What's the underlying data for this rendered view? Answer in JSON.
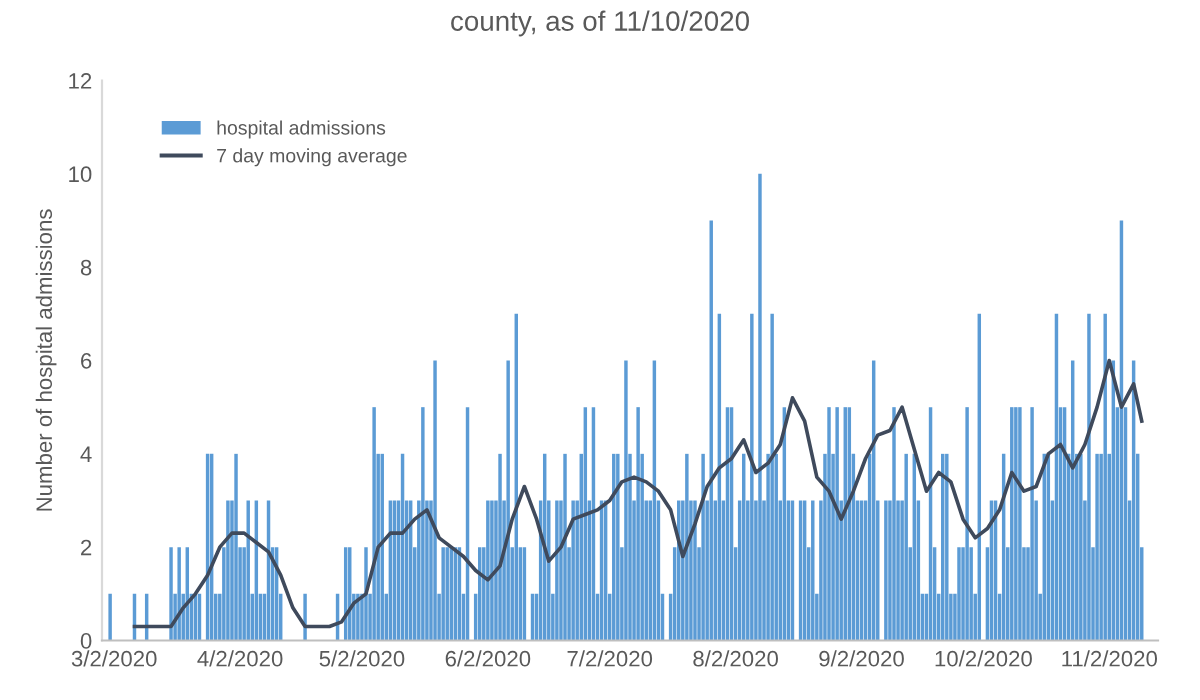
{
  "chart_data": {
    "type": "bar",
    "title": "county, as of 11/10/2020",
    "ylabel": "Number of hospital admissions",
    "ylim": [
      0,
      12
    ],
    "yticks": [
      0,
      2,
      4,
      6,
      8,
      10,
      12
    ],
    "xlim": [
      "2020-02-28",
      "2020-11-14"
    ],
    "xticks": [
      {
        "value": "2020-03-02",
        "label": "3/2/2020"
      },
      {
        "value": "2020-04-02",
        "label": "4/2/2020"
      },
      {
        "value": "2020-05-02",
        "label": "5/2/2020"
      },
      {
        "value": "2020-06-02",
        "label": "6/2/2020"
      },
      {
        "value": "2020-07-02",
        "label": "7/2/2020"
      },
      {
        "value": "2020-08-02",
        "label": "8/2/2020"
      },
      {
        "value": "2020-09-02",
        "label": "9/2/2020"
      },
      {
        "value": "2020-10-02",
        "label": "10/2/2020"
      },
      {
        "value": "2020-11-02",
        "label": "11/2/2020"
      }
    ],
    "grid": false,
    "legend": "top left",
    "series": [
      {
        "name": "hospital admissions",
        "color": "#5b9bd5",
        "x": [
          "2020-03-01",
          "2020-03-02",
          "2020-03-03",
          "2020-03-04",
          "2020-03-05",
          "2020-03-06",
          "2020-03-07",
          "2020-03-08",
          "2020-03-09",
          "2020-03-10",
          "2020-03-11",
          "2020-03-12",
          "2020-03-13",
          "2020-03-14",
          "2020-03-15",
          "2020-03-16",
          "2020-03-17",
          "2020-03-18",
          "2020-03-19",
          "2020-03-20",
          "2020-03-21",
          "2020-03-22",
          "2020-03-23",
          "2020-03-24",
          "2020-03-25",
          "2020-03-26",
          "2020-03-27",
          "2020-03-28",
          "2020-03-29",
          "2020-03-30",
          "2020-03-31",
          "2020-04-01",
          "2020-04-02",
          "2020-04-03",
          "2020-04-04",
          "2020-04-05",
          "2020-04-06",
          "2020-04-07",
          "2020-04-08",
          "2020-04-09",
          "2020-04-10",
          "2020-04-11",
          "2020-04-12",
          "2020-04-13",
          "2020-04-14",
          "2020-04-15",
          "2020-04-16",
          "2020-04-17",
          "2020-04-18",
          "2020-04-19",
          "2020-04-20",
          "2020-04-21",
          "2020-04-22",
          "2020-04-23",
          "2020-04-24",
          "2020-04-25",
          "2020-04-26",
          "2020-04-27",
          "2020-04-28",
          "2020-04-29",
          "2020-04-30",
          "2020-05-01",
          "2020-05-02",
          "2020-05-03",
          "2020-05-04",
          "2020-05-05",
          "2020-05-06",
          "2020-05-07",
          "2020-05-08",
          "2020-05-09",
          "2020-05-10",
          "2020-05-11",
          "2020-05-12",
          "2020-05-13",
          "2020-05-14",
          "2020-05-15",
          "2020-05-16",
          "2020-05-17",
          "2020-05-18",
          "2020-05-19",
          "2020-05-20",
          "2020-05-21",
          "2020-05-22",
          "2020-05-23",
          "2020-05-24",
          "2020-05-25",
          "2020-05-26",
          "2020-05-27",
          "2020-05-28",
          "2020-05-29",
          "2020-05-30",
          "2020-05-31",
          "2020-06-01",
          "2020-06-02",
          "2020-06-03",
          "2020-06-04",
          "2020-06-05",
          "2020-06-06",
          "2020-06-07",
          "2020-06-08",
          "2020-06-09",
          "2020-06-10",
          "2020-06-11",
          "2020-06-12",
          "2020-06-13",
          "2020-06-14",
          "2020-06-15",
          "2020-06-16",
          "2020-06-17",
          "2020-06-18",
          "2020-06-19",
          "2020-06-20",
          "2020-06-21",
          "2020-06-22",
          "2020-06-23",
          "2020-06-24",
          "2020-06-25",
          "2020-06-26",
          "2020-06-27",
          "2020-06-28",
          "2020-06-29",
          "2020-06-30",
          "2020-07-01",
          "2020-07-02",
          "2020-07-03",
          "2020-07-04",
          "2020-07-05",
          "2020-07-06",
          "2020-07-07",
          "2020-07-08",
          "2020-07-09",
          "2020-07-10",
          "2020-07-11",
          "2020-07-12",
          "2020-07-13",
          "2020-07-14",
          "2020-07-15",
          "2020-07-16",
          "2020-07-17",
          "2020-07-18",
          "2020-07-19",
          "2020-07-20",
          "2020-07-21",
          "2020-07-22",
          "2020-07-23",
          "2020-07-24",
          "2020-07-25",
          "2020-07-26",
          "2020-07-27",
          "2020-07-28",
          "2020-07-29",
          "2020-07-30",
          "2020-07-31",
          "2020-08-01",
          "2020-08-02",
          "2020-08-03",
          "2020-08-04",
          "2020-08-05",
          "2020-08-06",
          "2020-08-07",
          "2020-08-08",
          "2020-08-09",
          "2020-08-10",
          "2020-08-11",
          "2020-08-12",
          "2020-08-13",
          "2020-08-14",
          "2020-08-15",
          "2020-08-16",
          "2020-08-17",
          "2020-08-18",
          "2020-08-19",
          "2020-08-20",
          "2020-08-21",
          "2020-08-22",
          "2020-08-23",
          "2020-08-24",
          "2020-08-25",
          "2020-08-26",
          "2020-08-27",
          "2020-08-28",
          "2020-08-29",
          "2020-08-30",
          "2020-08-31",
          "2020-09-01",
          "2020-09-02",
          "2020-09-03",
          "2020-09-04",
          "2020-09-05",
          "2020-09-06",
          "2020-09-07",
          "2020-09-08",
          "2020-09-09",
          "2020-09-10",
          "2020-09-11",
          "2020-09-12",
          "2020-09-13",
          "2020-09-14",
          "2020-09-15",
          "2020-09-16",
          "2020-09-17",
          "2020-09-18",
          "2020-09-19",
          "2020-09-20",
          "2020-09-21",
          "2020-09-22",
          "2020-09-23",
          "2020-09-24",
          "2020-09-25",
          "2020-09-26",
          "2020-09-27",
          "2020-09-28",
          "2020-09-29",
          "2020-09-30",
          "2020-10-01",
          "2020-10-02",
          "2020-10-03",
          "2020-10-04",
          "2020-10-05",
          "2020-10-06",
          "2020-10-07",
          "2020-10-08",
          "2020-10-09",
          "2020-10-10",
          "2020-10-11",
          "2020-10-12",
          "2020-10-13",
          "2020-10-14",
          "2020-10-15",
          "2020-10-16",
          "2020-10-17",
          "2020-10-18",
          "2020-10-19",
          "2020-10-20",
          "2020-10-21",
          "2020-10-22",
          "2020-10-23",
          "2020-10-24",
          "2020-10-25",
          "2020-10-26",
          "2020-10-27",
          "2020-10-28",
          "2020-10-29",
          "2020-10-30",
          "2020-10-31",
          "2020-11-01",
          "2020-11-02",
          "2020-11-03",
          "2020-11-04",
          "2020-11-05",
          "2020-11-06",
          "2020-11-07",
          "2020-11-08",
          "2020-11-09",
          "2020-11-10"
        ],
        "values": [
          1,
          0,
          0,
          0,
          0,
          0,
          1,
          0,
          0,
          1,
          0,
          0,
          0,
          0,
          0,
          2,
          1,
          2,
          1,
          2,
          1,
          1,
          1,
          0,
          4,
          4,
          1,
          1,
          2,
          3,
          3,
          4,
          2,
          2,
          3,
          1,
          3,
          1,
          1,
          3,
          2,
          2,
          1,
          0,
          0,
          0,
          0,
          0,
          1,
          0,
          0,
          0,
          0,
          0,
          0,
          0,
          1,
          0,
          2,
          2,
          1,
          1,
          1,
          2,
          1,
          5,
          4,
          4,
          1,
          3,
          3,
          3,
          4,
          3,
          3,
          2,
          3,
          5,
          3,
          3,
          6,
          1,
          2,
          2,
          2,
          2,
          2,
          1,
          5,
          0,
          1,
          2,
          2,
          3,
          3,
          3,
          4,
          3,
          6,
          2,
          7,
          2,
          2,
          0,
          1,
          1,
          3,
          4,
          3,
          1,
          3,
          3,
          4,
          2,
          3,
          3,
          4,
          5,
          3,
          5,
          1,
          3,
          3,
          1,
          4,
          4,
          2,
          6,
          4,
          3,
          5,
          4,
          3,
          3,
          6,
          3,
          1,
          0,
          1,
          2,
          3,
          3,
          4,
          3,
          3,
          2,
          4,
          3,
          9,
          3,
          7,
          3,
          5,
          5,
          2,
          3,
          4,
          3,
          7,
          3,
          10,
          3,
          4,
          7,
          4,
          3,
          5,
          3,
          3,
          0,
          3,
          3,
          2,
          3,
          1,
          3,
          4,
          5,
          4,
          5,
          3,
          5,
          5,
          4,
          3,
          3,
          3,
          4,
          6,
          3,
          0,
          3,
          3,
          5,
          3,
          3,
          4,
          2,
          4,
          3,
          1,
          1,
          5,
          2,
          1,
          4,
          4,
          1,
          1,
          2,
          2,
          5,
          2,
          1,
          7,
          0,
          2,
          3,
          3,
          1,
          4,
          2,
          5,
          5,
          5,
          2,
          2,
          5,
          3,
          1,
          4,
          4,
          3,
          7,
          5,
          5,
          4,
          6,
          4,
          4,
          3,
          7,
          2,
          4,
          4,
          7,
          4,
          6,
          5,
          9,
          5,
          3,
          6,
          4,
          2
        ]
      },
      {
        "name": "7 day moving average",
        "type": "line",
        "color": "#3f4a5c",
        "x": [
          "2020-03-07",
          "2020-03-10",
          "2020-03-13",
          "2020-03-16",
          "2020-03-19",
          "2020-03-22",
          "2020-03-25",
          "2020-03-28",
          "2020-03-31",
          "2020-04-03",
          "2020-04-06",
          "2020-04-09",
          "2020-04-12",
          "2020-04-15",
          "2020-04-18",
          "2020-04-21",
          "2020-04-24",
          "2020-04-27",
          "2020-04-30",
          "2020-05-03",
          "2020-05-06",
          "2020-05-09",
          "2020-05-12",
          "2020-05-15",
          "2020-05-18",
          "2020-05-21",
          "2020-05-24",
          "2020-05-27",
          "2020-05-30",
          "2020-06-02",
          "2020-06-05",
          "2020-06-08",
          "2020-06-11",
          "2020-06-14",
          "2020-06-17",
          "2020-06-20",
          "2020-06-23",
          "2020-06-26",
          "2020-06-29",
          "2020-07-02",
          "2020-07-05",
          "2020-07-08",
          "2020-07-11",
          "2020-07-14",
          "2020-07-17",
          "2020-07-20",
          "2020-07-23",
          "2020-07-26",
          "2020-07-29",
          "2020-08-01",
          "2020-08-04",
          "2020-08-07",
          "2020-08-10",
          "2020-08-13",
          "2020-08-16",
          "2020-08-19",
          "2020-08-22",
          "2020-08-25",
          "2020-08-28",
          "2020-08-31",
          "2020-09-03",
          "2020-09-06",
          "2020-09-09",
          "2020-09-12",
          "2020-09-15",
          "2020-09-18",
          "2020-09-21",
          "2020-09-24",
          "2020-09-27",
          "2020-09-30",
          "2020-10-03",
          "2020-10-06",
          "2020-10-09",
          "2020-10-12",
          "2020-10-15",
          "2020-10-18",
          "2020-10-21",
          "2020-10-24",
          "2020-10-27",
          "2020-10-30",
          "2020-11-02",
          "2020-11-05",
          "2020-11-08",
          "2020-11-10"
        ],
        "values": [
          0.3,
          0.3,
          0.3,
          0.3,
          0.7,
          1.0,
          1.4,
          2.0,
          2.3,
          2.3,
          2.1,
          1.9,
          1.4,
          0.7,
          0.3,
          0.3,
          0.3,
          0.4,
          0.8,
          1.0,
          2.0,
          2.3,
          2.3,
          2.6,
          2.8,
          2.2,
          2.0,
          1.8,
          1.5,
          1.3,
          1.6,
          2.6,
          3.3,
          2.6,
          1.7,
          2.0,
          2.6,
          2.7,
          2.8,
          3.0,
          3.4,
          3.5,
          3.4,
          3.2,
          2.8,
          1.8,
          2.5,
          3.3,
          3.7,
          3.9,
          4.3,
          3.6,
          3.8,
          4.2,
          5.2,
          4.7,
          3.5,
          3.2,
          2.6,
          3.2,
          3.9,
          4.4,
          4.5,
          5.0,
          4.1,
          3.2,
          3.6,
          3.4,
          2.6,
          2.2,
          2.4,
          2.8,
          3.6,
          3.2,
          3.3,
          4.0,
          4.2,
          3.7,
          4.2,
          5.0,
          6.0,
          5.0,
          5.5,
          4.7
        ]
      }
    ]
  }
}
